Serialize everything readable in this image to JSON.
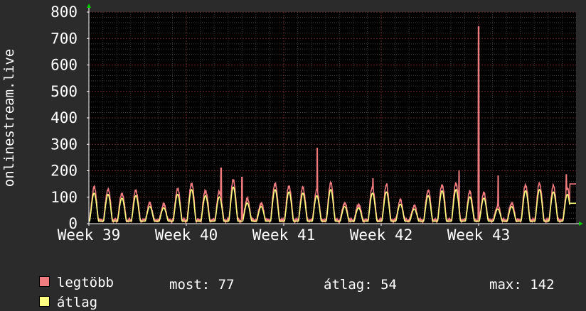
{
  "chart_data": {
    "type": "line",
    "ylabel": "onlinestream.live",
    "ylim": [
      0,
      800
    ],
    "yticks": [
      0,
      100,
      200,
      300,
      400,
      500,
      600,
      700,
      800
    ],
    "x_tick_labels": [
      "Week 39",
      "Week 40",
      "Week 41",
      "Week 42",
      "Week 43"
    ],
    "x_range_days": 35,
    "grid": true,
    "series": [
      {
        "name": "legtöbb",
        "color": "#f07c80"
      },
      {
        "name": "átlag",
        "color": "#ffff80"
      }
    ],
    "spikes": [
      {
        "day": 9.5,
        "value": 210
      },
      {
        "day": 11.0,
        "value": 175
      },
      {
        "day": 16.4,
        "value": 285
      },
      {
        "day": 20.4,
        "value": 170
      },
      {
        "day": 21.4,
        "value": 150
      },
      {
        "day": 26.6,
        "value": 200
      },
      {
        "day": 28.0,
        "value": 745
      },
      {
        "day": 29.4,
        "value": 180
      },
      {
        "day": 34.3,
        "value": 185
      }
    ]
  },
  "legend": {
    "max_label": "legtöbb",
    "avg_label": "átlag",
    "now_text": "most: 77",
    "avg_text": "átlag: 54",
    "max_text": "max: 142"
  }
}
